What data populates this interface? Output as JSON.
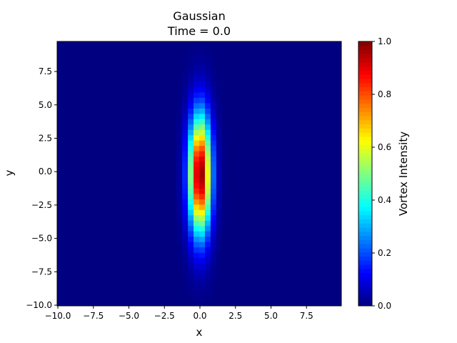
{
  "chart_data": {
    "type": "heatmap",
    "title": "Gaussian",
    "subtitle": "Time = 0.0",
    "xlabel": "x",
    "ylabel": "y",
    "xlim": [
      -10.05,
      9.95
    ],
    "ylim": [
      -10.05,
      9.75
    ],
    "xticks": [
      -10.0,
      -7.5,
      -5.0,
      -2.5,
      0.0,
      2.5,
      5.0,
      7.5
    ],
    "yticks": [
      -10.0,
      -7.5,
      -5.0,
      -2.5,
      0.0,
      2.5,
      5.0,
      7.5
    ],
    "xtick_labels": [
      "−10.0",
      "−7.5",
      "−5.0",
      "−2.5",
      "0.0",
      "2.5",
      "5.0",
      "7.5"
    ],
    "ytick_labels": [
      "−10.0",
      "−7.5",
      "−5.0",
      "−2.5",
      "0.0",
      "2.5",
      "5.0",
      "7.5"
    ],
    "field": {
      "kind": "gaussian",
      "center_x": 0.0,
      "center_y": -0.2,
      "sigma_x": 0.55,
      "sigma_y": 3.1,
      "peak": 1.0,
      "cell_size": 0.4
    },
    "colormap": "jet",
    "colorbar": {
      "label": "Vortex Intensity",
      "range": [
        0.0,
        1.0
      ],
      "ticks": [
        0.0,
        0.2,
        0.4,
        0.6,
        0.8,
        1.0
      ],
      "tick_labels": [
        "0.0",
        "0.2",
        "0.4",
        "0.6",
        "0.8",
        "1.0"
      ]
    },
    "grid": false
  }
}
